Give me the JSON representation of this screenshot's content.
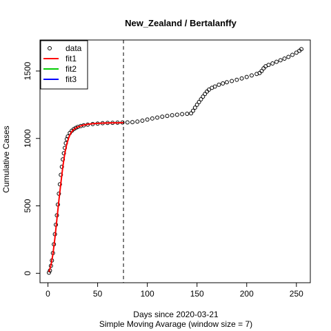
{
  "chart_data": {
    "type": "scatter",
    "title": "New_Zealand / Bertalanffy",
    "xlabel": "Days since 2020-03-21",
    "xlabel2": "Simple Moving Avarage (window size = 7)",
    "ylabel": "Cumulative Cases",
    "xlim": [
      -8,
      264
    ],
    "ylim": [
      -70,
      1730
    ],
    "xticks": [
      0,
      50,
      100,
      150,
      200,
      250
    ],
    "yticks": [
      0,
      500,
      1000,
      1500
    ],
    "vline": 76,
    "legend_position": "top-left",
    "legend": [
      {
        "label": "data",
        "kind": "point",
        "color": "#000000"
      },
      {
        "label": "fit1",
        "kind": "line",
        "color": "#ff0000"
      },
      {
        "label": "fit2",
        "kind": "line",
        "color": "#00cc00"
      },
      {
        "label": "fit3",
        "kind": "line",
        "color": "#0000ff"
      }
    ],
    "series": [
      {
        "name": "data",
        "type": "scatter",
        "color": "#000000",
        "points": [
          [
            1,
            5
          ],
          [
            2,
            20
          ],
          [
            3,
            55
          ],
          [
            4,
            95
          ],
          [
            5,
            150
          ],
          [
            6,
            215
          ],
          [
            7,
            290
          ],
          [
            8,
            360
          ],
          [
            9,
            430
          ],
          [
            10,
            510
          ],
          [
            11,
            590
          ],
          [
            12,
            660
          ],
          [
            13,
            730
          ],
          [
            14,
            790
          ],
          [
            15,
            845
          ],
          [
            16,
            890
          ],
          [
            17,
            930
          ],
          [
            18,
            965
          ],
          [
            19,
            995
          ],
          [
            20,
            1015
          ],
          [
            22,
            1040
          ],
          [
            24,
            1057
          ],
          [
            26,
            1069
          ],
          [
            28,
            1078
          ],
          [
            30,
            1085
          ],
          [
            33,
            1092
          ],
          [
            36,
            1097
          ],
          [
            40,
            1102
          ],
          [
            45,
            1107
          ],
          [
            50,
            1110
          ],
          [
            55,
            1113
          ],
          [
            60,
            1115
          ],
          [
            65,
            1116
          ],
          [
            70,
            1117
          ],
          [
            75,
            1118
          ],
          [
            80,
            1119
          ],
          [
            85,
            1121
          ],
          [
            90,
            1125
          ],
          [
            95,
            1132
          ],
          [
            100,
            1140
          ],
          [
            105,
            1148
          ],
          [
            110,
            1155
          ],
          [
            115,
            1161
          ],
          [
            120,
            1167
          ],
          [
            125,
            1172
          ],
          [
            130,
            1176
          ],
          [
            135,
            1180
          ],
          [
            140,
            1183
          ],
          [
            144,
            1186
          ],
          [
            146,
            1205
          ],
          [
            148,
            1228
          ],
          [
            150,
            1250
          ],
          [
            152,
            1270
          ],
          [
            154,
            1290
          ],
          [
            156,
            1310
          ],
          [
            158,
            1330
          ],
          [
            160,
            1348
          ],
          [
            162,
            1362
          ],
          [
            165,
            1375
          ],
          [
            168,
            1385
          ],
          [
            172,
            1398
          ],
          [
            176,
            1408
          ],
          [
            180,
            1417
          ],
          [
            185,
            1426
          ],
          [
            190,
            1435
          ],
          [
            195,
            1445
          ],
          [
            200,
            1456
          ],
          [
            205,
            1467
          ],
          [
            210,
            1478
          ],
          [
            213,
            1485
          ],
          [
            215,
            1500
          ],
          [
            217,
            1520
          ],
          [
            219,
            1535
          ],
          [
            222,
            1545
          ],
          [
            226,
            1556
          ],
          [
            230,
            1568
          ],
          [
            234,
            1580
          ],
          [
            238,
            1592
          ],
          [
            242,
            1605
          ],
          [
            246,
            1620
          ],
          [
            250,
            1636
          ],
          [
            253,
            1650
          ],
          [
            255,
            1662
          ]
        ]
      },
      {
        "name": "fit1",
        "type": "line",
        "color": "#ff0000",
        "x_end": 76,
        "points": [
          [
            1,
            10
          ],
          [
            3,
            60
          ],
          [
            5,
            140
          ],
          [
            7,
            260
          ],
          [
            9,
            400
          ],
          [
            11,
            540
          ],
          [
            13,
            670
          ],
          [
            15,
            790
          ],
          [
            17,
            890
          ],
          [
            19,
            960
          ],
          [
            21,
            1008
          ],
          [
            23,
            1040
          ],
          [
            25,
            1060
          ],
          [
            27,
            1072
          ],
          [
            30,
            1085
          ],
          [
            35,
            1098
          ],
          [
            40,
            1105
          ],
          [
            45,
            1109
          ],
          [
            50,
            1112
          ],
          [
            55,
            1114
          ],
          [
            60,
            1115
          ],
          [
            65,
            1116
          ],
          [
            70,
            1116
          ],
          [
            76,
            1117
          ]
        ]
      }
    ]
  }
}
